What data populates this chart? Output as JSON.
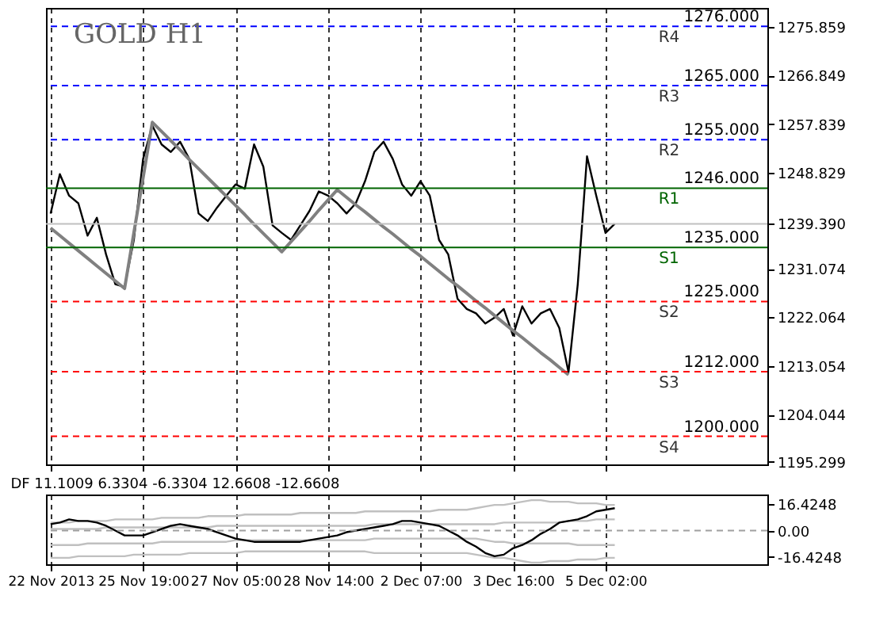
{
  "chart_data": [
    {
      "type": "line",
      "title": "GOLD H1",
      "categories": [
        null,
        null,
        null,
        null,
        null,
        null,
        null,
        null,
        null,
        null,
        null,
        null,
        null,
        null,
        null,
        null,
        null,
        null,
        null,
        null,
        null,
        null,
        null,
        null,
        null,
        null,
        null,
        null,
        null,
        null,
        null,
        null,
        null,
        null,
        null,
        null,
        null,
        null,
        null,
        null,
        null,
        null,
        null,
        null,
        null,
        null,
        null,
        null,
        null,
        null,
        null,
        null,
        null,
        null,
        null,
        null,
        null,
        null,
        null,
        null,
        null,
        null,
        null,
        null,
        null,
        null,
        null,
        null,
        null,
        null,
        null,
        null,
        null,
        null,
        null,
        null,
        null,
        null
      ],
      "ylim": [
        1194.8,
        1279.4
      ],
      "yticks": [
        {
          "value": 1275.859,
          "label": "1275.859"
        },
        {
          "value": 1266.849,
          "label": "1266.849"
        },
        {
          "value": 1257.839,
          "label": "1257.839"
        },
        {
          "value": 1248.829,
          "label": "1248.829"
        },
        {
          "value": 1239.39,
          "label": "1239.390"
        },
        {
          "value": 1231.074,
          "label": "1231.074"
        },
        {
          "value": 1222.064,
          "label": "1222.064"
        },
        {
          "value": 1213.054,
          "label": "1213.054"
        },
        {
          "value": 1204.044,
          "label": "1204.044"
        },
        {
          "value": 1195.299,
          "label": "1195.299"
        }
      ],
      "tick_labels": "y",
      "grid": "x",
      "series": [
        {
          "color": "#000000",
          "values": [
            1241.3,
            1248.6,
            1244.6,
            1243.2,
            1237.2,
            1240.5,
            1233.7,
            1228.2,
            1227.7,
            1236.4,
            1251.4,
            1257.6,
            1254.1,
            1252.7,
            1254.6,
            1251.4,
            1241.3,
            1239.9,
            1242.4,
            1244.6,
            1246.7,
            1245.9,
            1254.1,
            1250.0,
            1239.1,
            1237.7,
            1236.4,
            1239.1,
            1241.8,
            1245.4,
            1244.6,
            1243.2,
            1241.3,
            1243.2,
            1247.3,
            1252.7,
            1254.6,
            1251.4,
            1246.7,
            1244.6,
            1247.3,
            1244.6,
            1236.4,
            1233.7,
            1225.5,
            1223.6,
            1222.8,
            1220.9,
            1222.0,
            1223.6,
            1218.7,
            1224.1,
            1220.9,
            1222.8,
            1223.6,
            1220.1,
            1211.9,
            1228.2,
            1251.9,
            1244.6,
            1237.7,
            1239.4,
            null,
            null,
            null,
            null,
            null,
            null,
            null,
            null,
            null,
            null,
            null,
            null,
            null,
            null,
            null,
            null
          ]
        },
        {
          "color": "#808080",
          "values": [
            1238.6,
            1237.2,
            1235.8,
            1234.4,
            1233.0,
            1231.6,
            1230.2,
            1228.8,
            1227.4,
            1237.7,
            1247.9,
            1258.2,
            1256.5,
            1254.8,
            1253.1,
            1251.3,
            1249.6,
            1247.9,
            1246.2,
            1244.5,
            1242.8,
            1241.1,
            1239.3,
            1237.6,
            1235.9,
            1234.2,
            1236.1,
            1238.0,
            1239.9,
            1241.9,
            1243.8,
            1245.7,
            1244.3,
            1242.9,
            1241.6,
            1240.2,
            1238.8,
            1237.5,
            1236.1,
            1234.7,
            1233.4,
            1232.0,
            1230.6,
            1229.2,
            1227.9,
            1226.5,
            1225.1,
            1223.8,
            1222.4,
            1221.0,
            1219.6,
            1218.3,
            1216.9,
            1215.5,
            1214.2,
            1212.8,
            1211.4,
            null,
            null,
            null,
            null,
            null,
            null,
            null,
            null,
            null,
            null,
            null,
            null,
            null,
            null,
            null,
            null,
            null,
            null,
            null,
            null,
            null
          ]
        }
      ],
      "ref_lines": [
        {
          "axis": "y",
          "value": 1276,
          "label": "R4",
          "color": "#0000ff",
          "line_style": "dashed"
        },
        {
          "axis": "y",
          "value": 1265,
          "label": "R3",
          "color": "#0000ff",
          "line_style": "dashed"
        },
        {
          "axis": "y",
          "value": 1255,
          "label": "R2",
          "color": "#0000ff",
          "line_style": "dashed"
        },
        {
          "axis": "y",
          "value": 1246,
          "label": "R1",
          "color": "#006400",
          "line_style": "solid"
        },
        {
          "axis": "y",
          "value": 1239.39,
          "color": "#c0c0c0",
          "line_style": "solid"
        },
        {
          "axis": "y",
          "value": 1235,
          "label": "S1",
          "color": "#006400",
          "line_style": "solid"
        },
        {
          "axis": "y",
          "value": 1225,
          "label": "S2",
          "color": "#ff0000",
          "line_style": "dashed"
        },
        {
          "axis": "y",
          "value": 1212,
          "label": "S3",
          "color": "#ff0000",
          "line_style": "dashed"
        },
        {
          "axis": "y",
          "value": 1200,
          "label": "S4",
          "color": "#ff0000",
          "line_style": "dashed"
        }
      ],
      "annotations": [
        {
          "text": "1276.000",
          "y": 1276
        },
        {
          "text": "1265.000",
          "y": 1265
        },
        {
          "text": "1255.000",
          "y": 1255
        },
        {
          "text": "1246.000",
          "y": 1246
        },
        {
          "text": "1235.000",
          "y": 1235
        },
        {
          "text": "1225.000",
          "y": 1225
        },
        {
          "text": "1212.000",
          "y": 1212
        },
        {
          "text": "1200.000",
          "y": 1200
        }
      ]
    },
    {
      "type": "line",
      "title": "DF 11.1009 6.3304 -6.3304 12.6608 -12.6608",
      "categories": [
        "22 Nov 2013",
        null,
        null,
        null,
        null,
        null,
        null,
        null,
        null,
        null,
        "25 Nov 19:00",
        null,
        null,
        null,
        null,
        null,
        null,
        null,
        null,
        null,
        "27 Nov 05:00",
        null,
        null,
        null,
        null,
        null,
        null,
        null,
        null,
        null,
        "28 Nov 14:00",
        null,
        null,
        null,
        null,
        null,
        null,
        null,
        null,
        null,
        "2 Dec 07:00",
        null,
        null,
        null,
        null,
        null,
        null,
        null,
        null,
        null,
        "3 Dec 16:00",
        null,
        null,
        null,
        null,
        null,
        null,
        null,
        null,
        null,
        "5 Dec 02:00",
        null,
        null,
        null,
        null,
        null,
        null,
        null,
        null,
        null,
        null,
        null,
        null,
        null,
        null,
        null,
        null,
        null
      ],
      "ylim": [
        -21,
        22.5
      ],
      "yticks": [
        {
          "value": -16.4248,
          "label": "-16.4248"
        },
        {
          "value": 0,
          "label": "0.00"
        },
        {
          "value": 16.4248,
          "label": "16.4248"
        }
      ],
      "grid": "x",
      "series": [
        {
          "color": "#c0c0c0",
          "values": [
            5,
            5,
            5,
            6,
            6,
            6,
            6,
            7,
            7,
            7,
            7,
            7,
            8,
            8,
            8,
            8,
            8,
            9,
            9,
            9,
            9,
            10,
            10,
            10,
            10,
            10,
            10,
            11,
            11,
            11,
            11,
            11,
            11,
            11,
            12,
            12,
            12,
            12,
            12,
            12,
            12,
            12,
            13,
            13,
            13,
            13,
            14,
            15,
            16,
            16,
            17,
            18,
            19,
            19,
            18,
            18,
            18,
            17,
            17,
            17,
            16,
            16,
            null,
            null,
            null,
            null,
            null,
            null,
            null,
            null,
            null,
            null,
            null,
            null,
            null,
            null,
            null,
            null
          ]
        },
        {
          "color": "#c0c0c0",
          "values": [
            1,
            1,
            1,
            1,
            1,
            1,
            2,
            2,
            2,
            2,
            2,
            2,
            2,
            2,
            2,
            2,
            2,
            2,
            3,
            3,
            3,
            3,
            3,
            3,
            3,
            3,
            3,
            3,
            3,
            3,
            3,
            3,
            3,
            3,
            3,
            4,
            4,
            4,
            4,
            4,
            4,
            4,
            4,
            4,
            4,
            4,
            4,
            4,
            4,
            5,
            5,
            5,
            5,
            5,
            5,
            5,
            6,
            6,
            6,
            7,
            7,
            7,
            null,
            null,
            null,
            null,
            null,
            null,
            null,
            null,
            null,
            null,
            null,
            null,
            null,
            null,
            null,
            null
          ]
        },
        {
          "color": "#c0c0c0",
          "values": [
            -9,
            -9,
            -9,
            -9,
            -8,
            -8,
            -8,
            -8,
            -8,
            -8,
            -8,
            -8,
            -7,
            -7,
            -7,
            -7,
            -7,
            -7,
            -7,
            -7,
            -6,
            -6,
            -6,
            -6,
            -6,
            -6,
            -6,
            -6,
            -6,
            -6,
            -6,
            -6,
            -6,
            -6,
            -6,
            -5,
            -5,
            -5,
            -5,
            -5,
            -5,
            -5,
            -5,
            -5,
            -5,
            -5,
            -5,
            -6,
            -7,
            -7,
            -8,
            -8,
            -8,
            -8,
            -8,
            -8,
            -8,
            -9,
            -9,
            -9,
            -9,
            -9,
            null,
            null,
            null,
            null,
            null,
            null,
            null,
            null,
            null,
            null,
            null,
            null,
            null,
            null,
            null,
            null
          ]
        },
        {
          "color": "#c0c0c0",
          "values": [
            -17,
            -17,
            -17,
            -16,
            -16,
            -16,
            -16,
            -16,
            -16,
            -15,
            -15,
            -15,
            -15,
            -15,
            -15,
            -14,
            -14,
            -14,
            -14,
            -14,
            -14,
            -13,
            -13,
            -13,
            -13,
            -13,
            -13,
            -13,
            -13,
            -13,
            -13,
            -13,
            -13,
            -13,
            -13,
            -14,
            -14,
            -14,
            -14,
            -14,
            -14,
            -14,
            -14,
            -14,
            -14,
            -14,
            -15,
            -16,
            -17,
            -17,
            -18,
            -19,
            -20,
            -20,
            -19,
            -19,
            -19,
            -18,
            -18,
            -18,
            -17,
            -17,
            null,
            null,
            null,
            null,
            null,
            null,
            null,
            null,
            null,
            null,
            null,
            null,
            null,
            null,
            null,
            null
          ]
        },
        {
          "color": "#000000",
          "values": [
            4,
            5,
            7,
            6,
            6,
            5,
            3,
            0,
            -3,
            -3,
            -3,
            -1,
            1,
            3,
            4,
            3,
            2,
            1,
            -1,
            -3,
            -5,
            -6,
            -7,
            -7,
            -7,
            -7,
            -7,
            -7,
            -6,
            -5,
            -4,
            -3,
            -1,
            0,
            1,
            2,
            3,
            4,
            6,
            6,
            5,
            4,
            3,
            0,
            -3,
            -7,
            -10,
            -14,
            -16,
            -15,
            -11,
            -9,
            -6,
            -2,
            1,
            5,
            6,
            7,
            9,
            12,
            13,
            14,
            null,
            null,
            null,
            null,
            null,
            null,
            null,
            null,
            null,
            null,
            null,
            null,
            null,
            null,
            null,
            null
          ]
        }
      ],
      "ref_lines": [
        {
          "axis": "y",
          "value": 0,
          "color": "#a0a0a0",
          "line_style": "dashed"
        }
      ]
    }
  ]
}
